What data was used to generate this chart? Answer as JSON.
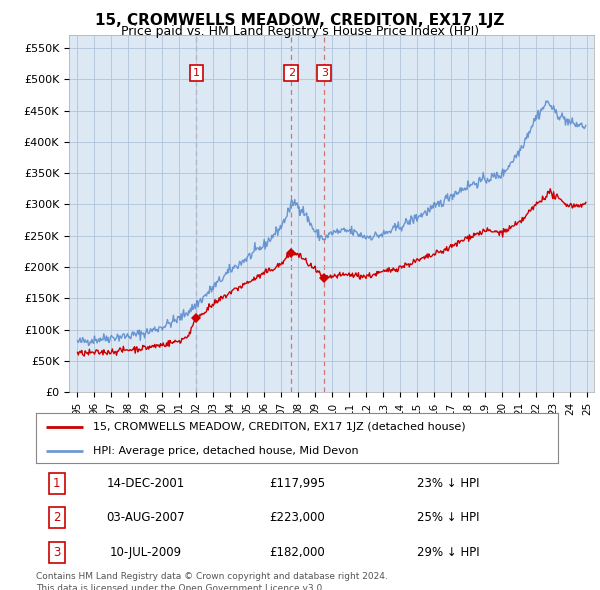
{
  "title": "15, CROMWELLS MEADOW, CREDITON, EX17 1JZ",
  "subtitle": "Price paid vs. HM Land Registry's House Price Index (HPI)",
  "legend_label_red": "15, CROMWELLS MEADOW, CREDITON, EX17 1JZ (detached house)",
  "legend_label_blue": "HPI: Average price, detached house, Mid Devon",
  "transactions": [
    {
      "num": 1,
      "date": "14-DEC-2001",
      "price": 117995,
      "hpi_diff": "23% ↓ HPI",
      "year": 2002.0
    },
    {
      "num": 2,
      "date": "03-AUG-2007",
      "price": 223000,
      "hpi_diff": "25% ↓ HPI",
      "year": 2007.58
    },
    {
      "num": 3,
      "date": "10-JUL-2009",
      "price": 182000,
      "hpi_diff": "29% ↓ HPI",
      "year": 2009.52
    }
  ],
  "footer": "Contains HM Land Registry data © Crown copyright and database right 2024.\nThis data is licensed under the Open Government Licence v3.0.",
  "ylim": [
    0,
    570000
  ],
  "yticks": [
    0,
    50000,
    100000,
    150000,
    200000,
    250000,
    300000,
    350000,
    400000,
    450000,
    500000,
    550000
  ],
  "ytick_labels": [
    "£0",
    "£50K",
    "£100K",
    "£150K",
    "£200K",
    "£250K",
    "£300K",
    "£350K",
    "£400K",
    "£450K",
    "£500K",
    "£550K"
  ],
  "background_color": "#ffffff",
  "chart_bg_color": "#dde8f5",
  "grid_color": "#b0c4d8",
  "red_color": "#cc0000",
  "blue_color": "#5588cc",
  "vline_color": "#cc4444"
}
